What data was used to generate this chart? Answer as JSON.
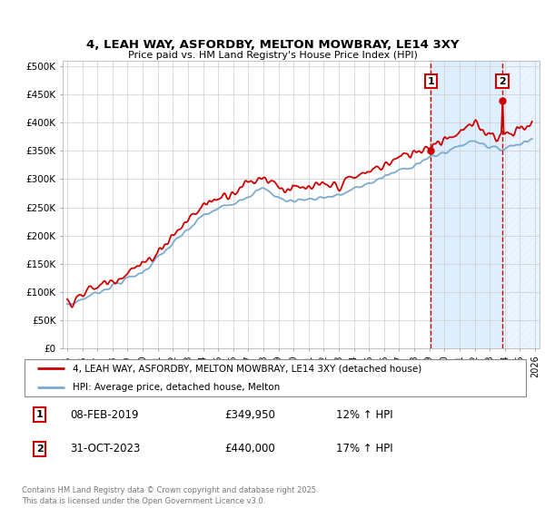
{
  "title": "4, LEAH WAY, ASFORDBY, MELTON MOWBRAY, LE14 3XY",
  "subtitle": "Price paid vs. HM Land Registry's House Price Index (HPI)",
  "xlim": [
    1994.7,
    2026.3
  ],
  "ylim": [
    0,
    510000
  ],
  "yticks": [
    0,
    50000,
    100000,
    150000,
    200000,
    250000,
    300000,
    350000,
    400000,
    450000,
    500000
  ],
  "ytick_labels": [
    "£0",
    "£50K",
    "£100K",
    "£150K",
    "£200K",
    "£250K",
    "£300K",
    "£350K",
    "£400K",
    "£450K",
    "£500K"
  ],
  "sale1_date": 2019.1,
  "sale1_price": 349950,
  "sale2_date": 2023.83,
  "sale2_price": 440000,
  "red_color": "#cc0000",
  "blue_color": "#7aaad0",
  "shaded_color": "#ddeeff",
  "hatch_color": "#c8d8e8",
  "grid_color": "#cccccc",
  "annotation_edge_color": "#cc0000",
  "legend_line1": "4, LEAH WAY, ASFORDBY, MELTON MOWBRAY, LE14 3XY (detached house)",
  "legend_line2": "HPI: Average price, detached house, Melton",
  "table_row1": [
    "1",
    "08-FEB-2019",
    "£349,950",
    "12% ↑ HPI"
  ],
  "table_row2": [
    "2",
    "31-OCT-2023",
    "£440,000",
    "17% ↑ HPI"
  ],
  "footnote": "Contains HM Land Registry data © Crown copyright and database right 2025.\nThis data is licensed under the Open Government Licence v3.0."
}
